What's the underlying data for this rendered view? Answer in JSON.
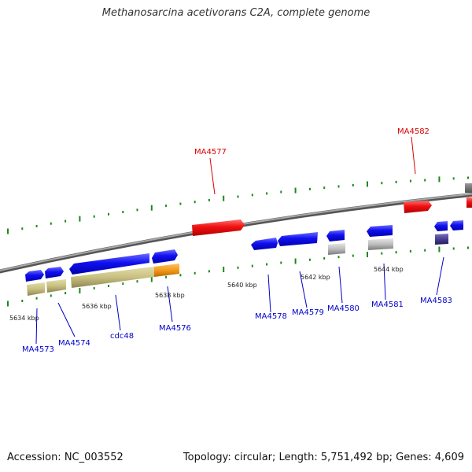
{
  "title": "Methanosarcina acetivorans C2A, complete genome",
  "footer": {
    "accession": "Accession: NC_003552",
    "summary": "Topology: circular; Length: 5,751,492 bp; Genes: 4,609"
  },
  "scale_labels": [
    "5634 kbp",
    "5636 kbp",
    "5638 kbp",
    "5640 kbp",
    "5642 kbp",
    "5644 kbp"
  ],
  "gene_labels": [
    {
      "text": "MA4573",
      "color": "#0000cc"
    },
    {
      "text": "MA4574",
      "color": "#0000cc"
    },
    {
      "text": "cdc48",
      "color": "#0000cc"
    },
    {
      "text": "MA4576",
      "color": "#0000cc"
    },
    {
      "text": "MA4577",
      "color": "#dd0000"
    },
    {
      "text": "MA4578",
      "color": "#0000cc"
    },
    {
      "text": "MA4579",
      "color": "#0000cc"
    },
    {
      "text": "MA4580",
      "color": "#0000cc"
    },
    {
      "text": "MA4581",
      "color": "#0000cc"
    },
    {
      "text": "MA4582",
      "color": "#dd0000"
    },
    {
      "text": "MA4583",
      "color": "#0000cc"
    }
  ],
  "colors": {
    "forward_gene": "#0000ee",
    "reverse_gene": "#ee0000",
    "khaki_feature": "#c8c080",
    "orange_feature": "#f39a1a",
    "gray_feature": "#bdbdbd",
    "purple_feature": "#4a3e8e",
    "backbone": "#8a8a8a",
    "tick": "#1a8a1a"
  }
}
